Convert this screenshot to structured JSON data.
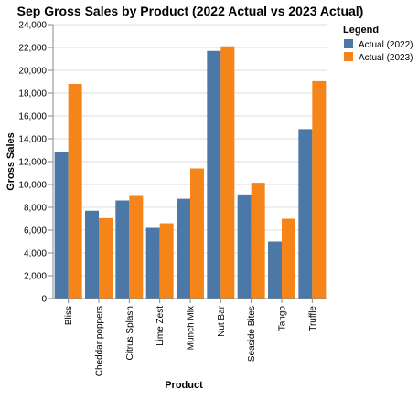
{
  "chart_data": {
    "type": "bar",
    "title": "Sep Gross Sales by Product (2022 Actual vs 2023 Actual)",
    "xlabel": "Product",
    "ylabel": "Gross Sales",
    "ylim": [
      0,
      24000
    ],
    "yticks": [
      0,
      2000,
      4000,
      6000,
      8000,
      10000,
      12000,
      14000,
      16000,
      18000,
      20000,
      22000,
      24000
    ],
    "ytick_labels": [
      "0",
      "2,000",
      "4,000",
      "6,000",
      "8,000",
      "10,000",
      "12,000",
      "14,000",
      "16,000",
      "18,000",
      "20,000",
      "22,000",
      "24,000"
    ],
    "grid": true,
    "legend_position": "right",
    "legend_title": "Legend",
    "categories": [
      "Bliss",
      "Cheddar poppers",
      "Citrus Splash",
      "Lime Zest",
      "Munch Mix",
      "Nut Bar",
      "Seaside Bites",
      "Tango",
      "Truffle"
    ],
    "series": [
      {
        "name": "Actual (2022)",
        "color": "#4c78a8",
        "values": [
          12800,
          7700,
          8600,
          6200,
          8750,
          21700,
          9050,
          5000,
          14850
        ]
      },
      {
        "name": "Actual (2023)",
        "color": "#f58518",
        "values": [
          18800,
          7050,
          9000,
          6600,
          11400,
          22100,
          10150,
          7000,
          19050
        ]
      }
    ]
  }
}
